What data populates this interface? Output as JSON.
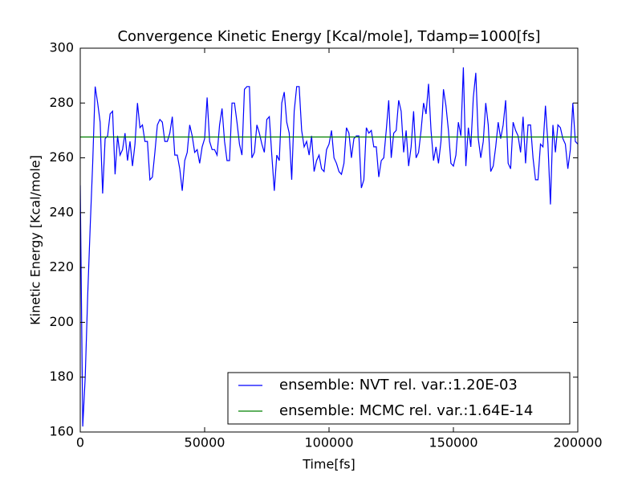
{
  "chart_data": {
    "type": "line",
    "title": "Convergence Kinetic Energy [Kcal/mole], Tdamp=1000[fs]",
    "x_label": "Time[fs]",
    "y_label": "Kinetic Energy [Kcal/mole]",
    "xlim": [
      0,
      200000
    ],
    "xticks": [
      0,
      50000,
      100000,
      150000,
      200000
    ],
    "ylim": [
      160,
      300
    ],
    "yticks": [
      160,
      180,
      200,
      220,
      240,
      260,
      280,
      300
    ],
    "legend": "lower right",
    "series": [
      {
        "name": "ensemble: NVT rel. var.:1.20E-03",
        "color": "#0000ff",
        "x": [
          0,
          1000,
          2000,
          3000,
          4000,
          5000,
          6000,
          7000,
          8000,
          9000,
          10000,
          11000,
          12000,
          13000,
          14000,
          15000,
          16000,
          17000,
          18000,
          19000,
          20000,
          21000,
          22000,
          23000,
          24000,
          25000,
          26000,
          27000,
          28000,
          29000,
          30000,
          31000,
          32000,
          33000,
          34000,
          35000,
          36000,
          37000,
          38000,
          39000,
          40000,
          41000,
          42000,
          43000,
          44000,
          45000,
          46000,
          47000,
          48000,
          49000,
          50000,
          51000,
          52000,
          53000,
          54000,
          55000,
          56000,
          57000,
          58000,
          59000,
          60000,
          61000,
          62000,
          63000,
          64000,
          65000,
          66000,
          67000,
          68000,
          69000,
          70000,
          71000,
          72000,
          73000,
          74000,
          75000,
          76000,
          77000,
          78000,
          79000,
          80000,
          81000,
          82000,
          83000,
          84000,
          85000,
          86000,
          87000,
          88000,
          89000,
          90000,
          91000,
          92000,
          93000,
          94000,
          95000,
          96000,
          97000,
          98000,
          99000,
          100000,
          101000,
          102000,
          103000,
          104000,
          105000,
          106000,
          107000,
          108000,
          109000,
          110000,
          111000,
          112000,
          113000,
          114000,
          115000,
          116000,
          117000,
          118000,
          119000,
          120000,
          121000,
          122000,
          123000,
          124000,
          125000,
          126000,
          127000,
          128000,
          129000,
          130000,
          131000,
          132000,
          133000,
          134000,
          135000,
          136000,
          137000,
          138000,
          139000,
          140000,
          141000,
          142000,
          143000,
          144000,
          145000,
          146000,
          147000,
          148000,
          149000,
          150000,
          151000,
          152000,
          153000,
          154000,
          155000,
          156000,
          157000,
          158000,
          159000,
          160000,
          161000,
          162000,
          163000,
          164000,
          165000,
          166000,
          167000,
          168000,
          169000,
          170000,
          171000,
          172000,
          173000,
          174000,
          175000,
          176000,
          177000,
          178000,
          179000,
          180000,
          181000,
          182000,
          183000,
          184000,
          185000,
          186000,
          187000,
          188000,
          189000,
          190000,
          191000,
          192000,
          193000,
          194000,
          195000,
          196000,
          197000,
          198000,
          199000,
          200000
        ],
        "values": [
          250,
          162,
          180,
          210,
          235,
          258,
          286,
          280,
          273,
          247,
          267,
          268,
          276,
          277,
          254,
          268,
          261,
          263,
          269,
          259,
          266,
          257,
          265,
          280,
          271,
          272,
          266,
          266,
          252,
          253,
          262,
          272,
          274,
          273,
          266,
          266,
          269,
          275,
          261,
          261,
          256,
          248,
          259,
          262,
          272,
          268,
          262,
          263,
          258,
          264,
          267,
          282,
          266,
          263,
          263,
          261,
          272,
          278,
          266,
          259,
          259,
          280,
          280,
          273,
          265,
          261,
          285,
          286,
          286,
          260,
          262,
          272,
          269,
          265,
          262,
          274,
          275,
          261,
          248,
          261,
          259,
          280,
          284,
          273,
          269,
          252,
          277,
          286,
          286,
          270,
          264,
          266,
          261,
          268,
          255,
          259,
          261,
          256,
          255,
          263,
          265,
          270,
          260,
          258,
          255,
          254,
          258,
          271,
          269,
          260,
          267,
          268,
          268,
          249,
          252,
          271,
          269,
          270,
          264,
          264,
          253,
          259,
          260,
          270,
          281,
          260,
          269,
          270,
          281,
          277,
          262,
          270,
          257,
          264,
          277,
          260,
          262,
          270,
          280,
          276,
          287,
          270,
          259,
          264,
          258,
          266,
          285,
          279,
          270,
          258,
          257,
          261,
          273,
          268,
          293,
          257,
          271,
          264,
          282,
          291,
          267,
          260,
          266,
          280,
          272,
          255,
          257,
          264,
          273,
          267,
          272,
          281,
          258,
          256,
          273,
          270,
          268,
          262,
          275,
          258,
          272,
          272,
          260,
          252,
          252,
          265,
          264,
          279,
          265,
          243,
          272,
          262,
          272,
          271,
          267,
          265,
          256,
          263,
          280,
          266,
          265
        ]
      },
      {
        "name": "ensemble: MCMC rel. var.:1.64E-14",
        "color": "#008000",
        "x": [
          0,
          200000
        ],
        "values": [
          267.6,
          267.6
        ]
      }
    ]
  }
}
